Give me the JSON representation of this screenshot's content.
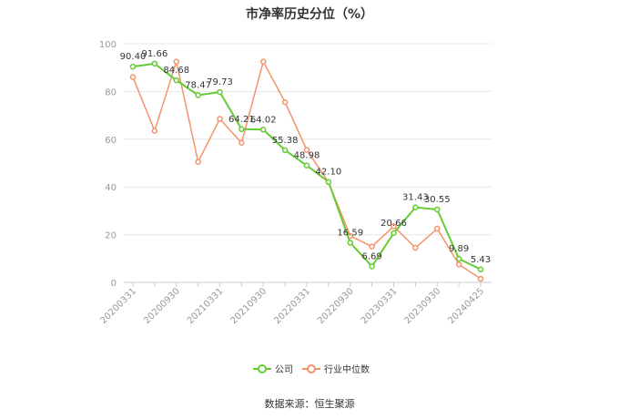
{
  "colors": {
    "company": "#66cc33",
    "industry": "#f4936b"
  },
  "footer": {
    "source_label": "数据来源：恒生聚源"
  },
  "chart_data": {
    "type": "line",
    "title": "市净率历史分位（%）",
    "xlabel": "",
    "ylabel": "",
    "ylim": [
      0,
      100
    ],
    "yticks": [
      0,
      20,
      40,
      60,
      80,
      100
    ],
    "grid": true,
    "legend_position": "bottom",
    "x": [
      "20200331",
      "20200630",
      "20200930",
      "20201231",
      "20210331",
      "20210630",
      "20210930",
      "20211231",
      "20220331",
      "20220630",
      "20220930",
      "20221231",
      "20230331",
      "20230630",
      "20230930",
      "20231231",
      "20240425"
    ],
    "x_tick_labels": [
      "20200331",
      "",
      "20200930",
      "",
      "20210331",
      "",
      "20210930",
      "",
      "20220331",
      "",
      "20220930",
      "",
      "20230331",
      "",
      "20230930",
      "",
      "20240425"
    ],
    "series": [
      {
        "name": "公司",
        "values": [
          90.4,
          91.66,
          84.68,
          78.47,
          79.73,
          64.21,
          64.02,
          55.38,
          48.98,
          42.1,
          16.59,
          6.69,
          20.66,
          31.43,
          30.55,
          9.89,
          5.43
        ],
        "labels": [
          "90.40",
          "91.66",
          "84.68",
          "78.47",
          "79.73",
          "64.21",
          "64.02",
          "55.38",
          "48.98",
          "42.10",
          "16.59",
          "6.69",
          "20.66",
          "31.43",
          "30.55",
          "9.89",
          "5.43"
        ]
      },
      {
        "name": "行业中位数",
        "values": [
          86.0,
          63.5,
          92.5,
          50.5,
          68.5,
          58.5,
          92.5,
          75.5,
          55.5,
          42.0,
          19.5,
          15.0,
          23.5,
          14.5,
          22.5,
          7.5,
          1.5
        ]
      }
    ]
  }
}
